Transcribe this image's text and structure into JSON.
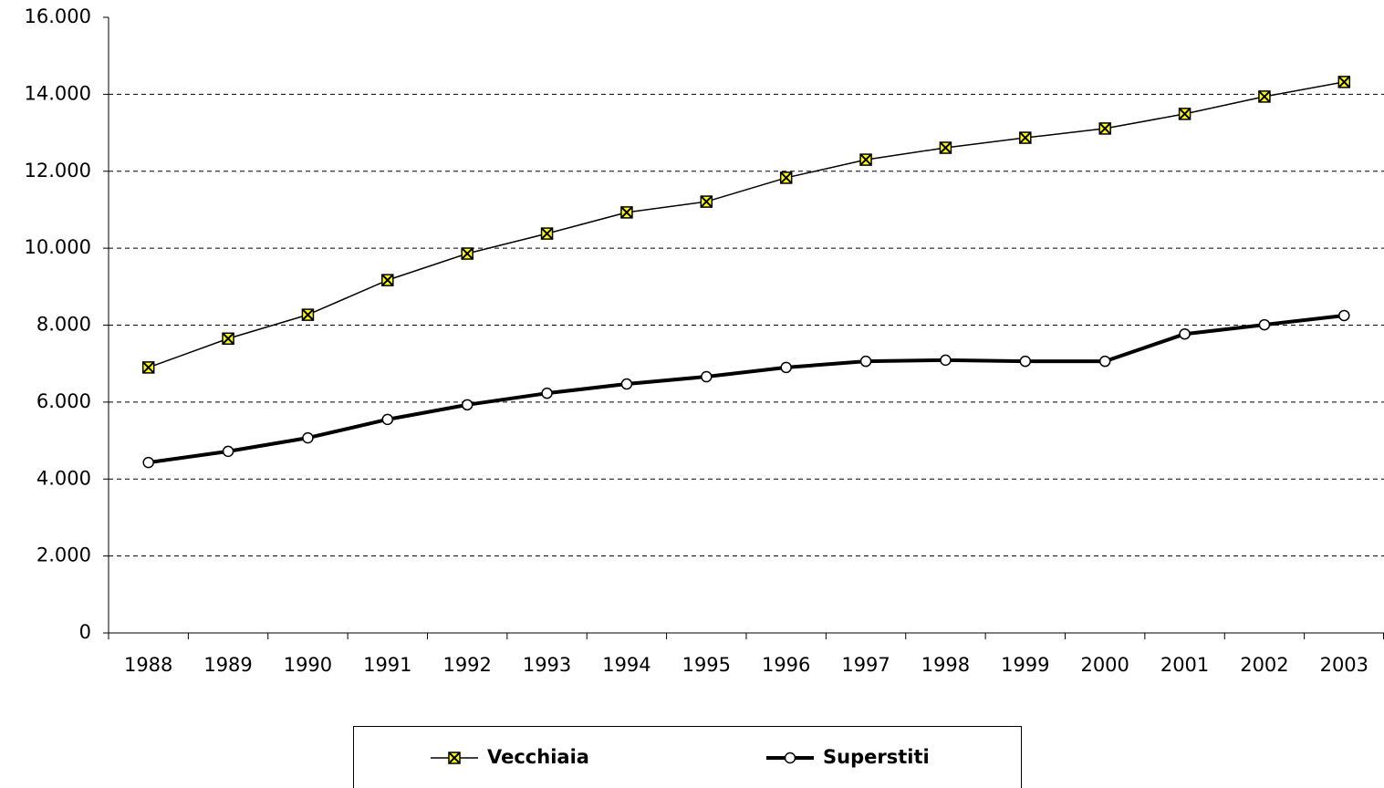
{
  "chart_data": {
    "type": "line",
    "categories": [
      "1988",
      "1989",
      "1990",
      "1991",
      "1992",
      "1993",
      "1994",
      "1995",
      "1996",
      "1997",
      "1998",
      "1999",
      "2000",
      "2001",
      "2002",
      "2003"
    ],
    "series": [
      {
        "name": "Vecchiaia",
        "color": "#000000",
        "marker": "x-square",
        "marker_color": "#ffff00",
        "values": [
          6900,
          7650,
          8270,
          9170,
          9860,
          10380,
          10930,
          11210,
          11830,
          12300,
          12610,
          12870,
          13110,
          13490,
          13940,
          14320
        ]
      },
      {
        "name": "Superstiti",
        "color": "#000000",
        "marker": "circle",
        "marker_color": "#ffffff",
        "values": [
          4430,
          4720,
          5070,
          5550,
          5930,
          6230,
          6470,
          6660,
          6900,
          7060,
          7090,
          7060,
          7060,
          7770,
          8010,
          8250
        ]
      }
    ],
    "ylim": [
      0,
      16000
    ],
    "yticks": [
      0,
      {
        "value": 2000,
        "label": "2.000"
      },
      {
        "value": 4000,
        "label": "4.000"
      },
      {
        "value": 6000,
        "label": "6.000"
      },
      {
        "value": 8000,
        "label": "8.000"
      },
      {
        "value": 10000,
        "label": "10.000"
      },
      {
        "value": 12000,
        "label": "12.000"
      },
      {
        "value": 14000,
        "label": "14.000"
      },
      {
        "value": 16000,
        "label": "16.000"
      }
    ],
    "grid": true,
    "legend": "bottom"
  }
}
